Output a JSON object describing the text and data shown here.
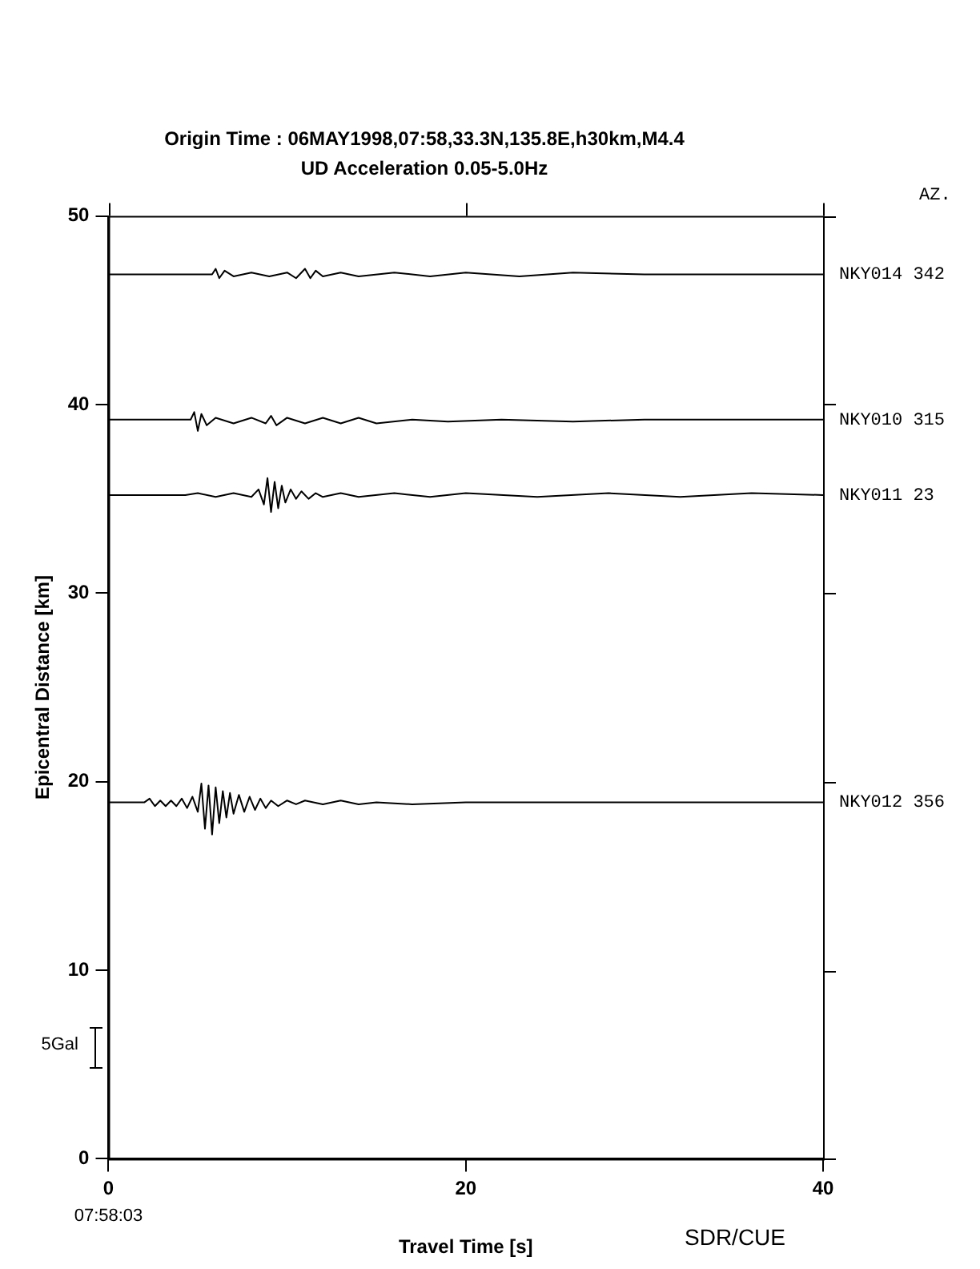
{
  "chart_data": {
    "type": "line",
    "title": "Origin Time : 06MAY1998,07:58,33.3N,135.8E,h30km,M4.4",
    "subtitle": "UD Acceleration 0.05-5.0Hz",
    "xlabel": "Travel Time [s]",
    "ylabel": "Epicentral Distance [km]",
    "annotations": [
      "AZ.",
      "07:58:03",
      "SDR/CUE",
      "5Gal"
    ],
    "xlim": [
      0,
      40
    ],
    "xticks": [
      0,
      20,
      40
    ],
    "ylim": [
      0,
      50
    ],
    "yticks": [
      0,
      10,
      20,
      30,
      40,
      50
    ],
    "grid": false,
    "legend": "right",
    "marker": "none",
    "line_style": "solid",
    "series": [
      {
        "name": "NKY014 342",
        "color": "#000000",
        "x": [
          0,
          5.8,
          6.0,
          6.2,
          6.5,
          7,
          8,
          9,
          10,
          10.5,
          11,
          11.3,
          11.6,
          12,
          13,
          14,
          16,
          18,
          20,
          23,
          26,
          30,
          35,
          40
        ],
        "values": [
          46.9,
          46.9,
          47.2,
          46.7,
          47.1,
          46.8,
          47.0,
          46.8,
          47.0,
          46.7,
          47.2,
          46.7,
          47.1,
          46.8,
          47.0,
          46.8,
          47.0,
          46.8,
          47.0,
          46.8,
          47.0,
          46.9,
          46.9,
          46.9
        ]
      },
      {
        "name": "NKY010 315",
        "color": "#000000",
        "x": [
          0,
          4.6,
          4.8,
          5.0,
          5.2,
          5.5,
          6,
          7,
          8,
          8.8,
          9.1,
          9.4,
          10,
          11,
          12,
          13,
          14,
          15,
          17,
          19,
          22,
          26,
          30,
          40
        ],
        "values": [
          39.2,
          39.2,
          39.6,
          38.6,
          39.5,
          38.9,
          39.3,
          39.0,
          39.3,
          39.0,
          39.4,
          38.9,
          39.3,
          39.0,
          39.3,
          39.0,
          39.3,
          39.0,
          39.2,
          39.1,
          39.2,
          39.1,
          39.2,
          39.2
        ]
      },
      {
        "name": "NKY011 23",
        "color": "#000000",
        "x": [
          0,
          4.3,
          5,
          6,
          7,
          8,
          8.4,
          8.7,
          8.9,
          9.1,
          9.3,
          9.5,
          9.7,
          9.9,
          10.2,
          10.5,
          10.8,
          11.2,
          11.6,
          12,
          13,
          14,
          16,
          18,
          20,
          24,
          28,
          32,
          36,
          40
        ],
        "values": [
          35.2,
          35.2,
          35.3,
          35.1,
          35.3,
          35.1,
          35.5,
          34.7,
          36.1,
          34.3,
          35.9,
          34.5,
          35.7,
          34.8,
          35.5,
          35.0,
          35.4,
          35.0,
          35.3,
          35.1,
          35.3,
          35.1,
          35.3,
          35.1,
          35.3,
          35.1,
          35.3,
          35.1,
          35.3,
          35.2
        ]
      },
      {
        "name": "NKY012 356",
        "color": "#000000",
        "x": [
          0,
          2.0,
          2.3,
          2.6,
          2.9,
          3.2,
          3.5,
          3.8,
          4.1,
          4.4,
          4.7,
          5.0,
          5.2,
          5.4,
          5.6,
          5.8,
          6.0,
          6.2,
          6.4,
          6.6,
          6.8,
          7.0,
          7.3,
          7.6,
          7.9,
          8.2,
          8.5,
          8.8,
          9.1,
          9.5,
          10,
          10.5,
          11,
          12,
          13,
          14,
          15,
          17,
          20,
          25,
          30,
          35,
          39,
          40
        ],
        "values": [
          18.9,
          18.9,
          19.1,
          18.7,
          19.0,
          18.7,
          19.0,
          18.7,
          19.1,
          18.6,
          19.2,
          18.4,
          19.9,
          17.5,
          19.8,
          17.2,
          19.7,
          17.8,
          19.5,
          18.1,
          19.4,
          18.3,
          19.3,
          18.4,
          19.2,
          18.5,
          19.1,
          18.6,
          19.0,
          18.7,
          19.0,
          18.8,
          19.0,
          18.8,
          19.0,
          18.8,
          18.9,
          18.8,
          18.9,
          18.9,
          18.9,
          18.9,
          18.9,
          18.9
        ]
      }
    ]
  }
}
